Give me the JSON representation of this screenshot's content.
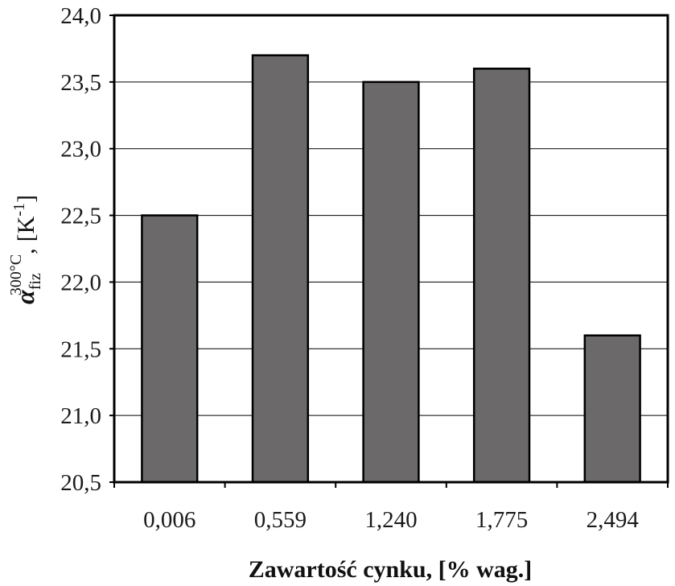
{
  "chart_data": {
    "type": "bar",
    "categories": [
      "0,006",
      "0,559",
      "1,240",
      "1,775",
      "2,494"
    ],
    "values": [
      22.5,
      23.7,
      23.5,
      23.6,
      21.6
    ],
    "title": "",
    "xlabel": "Zawartość cynku, [% wag.]",
    "ylabel": {
      "symbol": "α",
      "subscript": "fiz",
      "superscript": "300°C",
      "separator": ",",
      "unit_open": "[K",
      "unit_exponent": "-1",
      "unit_close": "]"
    },
    "ylim": [
      20.5,
      24.0
    ],
    "yticks": [
      20.5,
      21.0,
      21.5,
      22.0,
      22.5,
      23.0,
      23.5,
      24.0
    ],
    "ytick_labels": [
      "20,5",
      "21,0",
      "21,5",
      "22,0",
      "22,5",
      "23,0",
      "23,5",
      "24,0"
    ],
    "grid": true,
    "legend": "none",
    "colors": {
      "bar": "#6b6969",
      "bar_edge": "#000000",
      "grid": "#000000",
      "frame": "#000000"
    }
  }
}
